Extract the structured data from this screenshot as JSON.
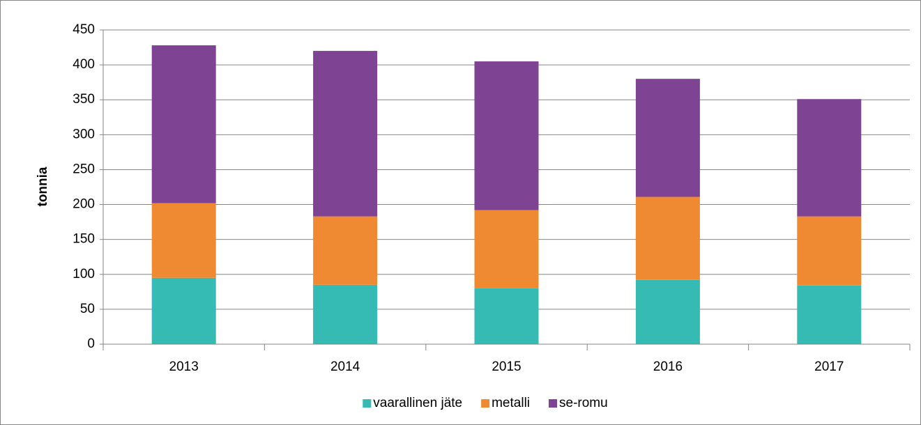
{
  "chart_data": {
    "type": "stacked_bar",
    "y_label": "tonnia",
    "categories": [
      "2013",
      "2014",
      "2015",
      "2016",
      "2017"
    ],
    "series": [
      {
        "name": "vaarallinen jäte",
        "color": "#35bab4",
        "values": [
          95,
          85,
          80,
          92,
          84
        ]
      },
      {
        "name": "metalli",
        "color": "#f08a32",
        "values": [
          107,
          98,
          112,
          119,
          99
        ]
      },
      {
        "name": "se-romu",
        "color": "#7f4393",
        "values": [
          226,
          237,
          213,
          169,
          168
        ]
      }
    ],
    "ylim": [
      0,
      450
    ],
    "yticks": [
      0,
      50,
      100,
      150,
      200,
      250,
      300,
      350,
      400,
      450
    ],
    "grid": true,
    "legend": "bottom"
  }
}
